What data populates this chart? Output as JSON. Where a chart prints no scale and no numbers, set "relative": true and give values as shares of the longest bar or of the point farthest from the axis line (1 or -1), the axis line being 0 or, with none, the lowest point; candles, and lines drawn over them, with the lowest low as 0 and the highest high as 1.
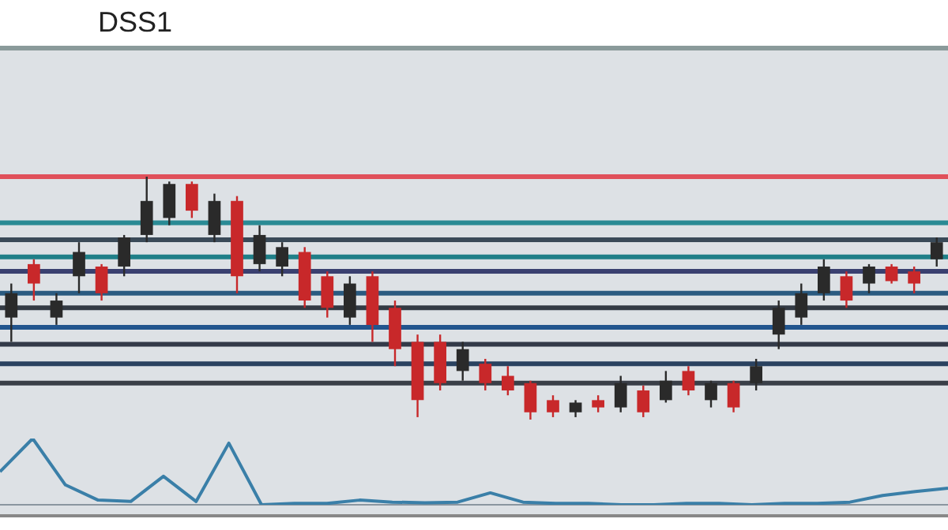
{
  "chart_data": [
    {
      "type": "candlestick",
      "title": "DSS1",
      "relative": true,
      "categories": [
        null,
        null,
        null,
        null,
        null,
        null,
        null,
        null,
        null,
        null,
        null,
        null,
        null,
        null,
        null,
        null,
        null,
        null,
        null,
        null,
        null,
        null,
        null,
        null,
        null,
        null,
        null,
        null,
        null,
        null,
        null,
        null,
        null,
        null,
        null,
        null,
        null,
        null,
        null,
        null,
        null,
        null
      ],
      "ohlc": [
        [
          0.42,
          0.56,
          0.32,
          0.52
        ],
        [
          0.64,
          0.66,
          0.49,
          0.56
        ],
        [
          0.42,
          0.52,
          0.39,
          0.49
        ],
        [
          0.59,
          0.73,
          0.52,
          0.69
        ],
        [
          0.63,
          0.64,
          0.49,
          0.52
        ],
        [
          0.63,
          0.76,
          0.59,
          0.75
        ],
        [
          0.76,
          1.0,
          0.73,
          0.9
        ],
        [
          0.83,
          0.98,
          0.8,
          0.97
        ],
        [
          0.97,
          0.98,
          0.83,
          0.86
        ],
        [
          0.76,
          0.93,
          0.73,
          0.9
        ],
        [
          0.9,
          0.92,
          0.52,
          0.59
        ],
        [
          0.64,
          0.8,
          0.61,
          0.76
        ],
        [
          0.63,
          0.73,
          0.59,
          0.71
        ],
        [
          0.69,
          0.71,
          0.46,
          0.49
        ],
        [
          0.59,
          0.61,
          0.42,
          0.46
        ],
        [
          0.42,
          0.59,
          0.39,
          0.56
        ],
        [
          0.59,
          0.61,
          0.32,
          0.39
        ],
        [
          0.46,
          0.49,
          0.22,
          0.29
        ],
        [
          0.32,
          0.35,
          0.01,
          0.08
        ],
        [
          0.32,
          0.35,
          0.12,
          0.15
        ],
        [
          0.2,
          0.32,
          0.16,
          0.29
        ],
        [
          0.23,
          0.25,
          0.12,
          0.15
        ],
        [
          0.18,
          0.22,
          0.1,
          0.12
        ],
        [
          0.15,
          0.16,
          0.0,
          0.03
        ],
        [
          0.08,
          0.1,
          0.01,
          0.03
        ],
        [
          0.03,
          0.08,
          0.01,
          0.07
        ],
        [
          0.08,
          0.1,
          0.03,
          0.05
        ],
        [
          0.05,
          0.18,
          0.03,
          0.15
        ],
        [
          0.12,
          0.14,
          0.01,
          0.03
        ],
        [
          0.08,
          0.2,
          0.07,
          0.16
        ],
        [
          0.2,
          0.22,
          0.1,
          0.12
        ],
        [
          0.08,
          0.16,
          0.05,
          0.15
        ],
        [
          0.15,
          0.16,
          0.03,
          0.05
        ],
        [
          0.15,
          0.25,
          0.12,
          0.22
        ],
        [
          0.35,
          0.49,
          0.29,
          0.46
        ],
        [
          0.42,
          0.56,
          0.39,
          0.52
        ],
        [
          0.52,
          0.66,
          0.49,
          0.63
        ],
        [
          0.59,
          0.61,
          0.46,
          0.49
        ],
        [
          0.56,
          0.64,
          0.52,
          0.63
        ],
        [
          0.63,
          0.64,
          0.56,
          0.57
        ],
        [
          0.61,
          0.63,
          0.52,
          0.56
        ],
        [
          0.66,
          0.75,
          0.63,
          0.73
        ]
      ],
      "colors": [
        "#2a2a2a",
        "#c8282a",
        "#2a2a2a",
        "#2a2a2a",
        "#c8282a",
        "#2a2a2a",
        "#2a2a2a",
        "#2a2a2a",
        "#c8282a",
        "#2a2a2a",
        "#c8282a",
        "#2a2a2a",
        "#2a2a2a",
        "#c8282a",
        "#c8282a",
        "#2a2a2a",
        "#c8282a",
        "#c8282a",
        "#c8282a",
        "#c8282a",
        "#2a2a2a",
        "#c8282a",
        "#c8282a",
        "#c8282a",
        "#c8282a",
        "#2a2a2a",
        "#c8282a",
        "#2a2a2a",
        "#c8282a",
        "#2a2a2a",
        "#c8282a",
        "#2a2a2a",
        "#c8282a",
        "#2a2a2a",
        "#2a2a2a",
        "#2a2a2a",
        "#2a2a2a",
        "#c8282a",
        "#2a2a2a",
        "#c8282a",
        "#c8282a",
        "#2a2a2a"
      ],
      "ref_lines": [
        {
          "axis": "y",
          "value": 1.0,
          "color": "#e0505a"
        },
        {
          "axis": "y",
          "value": 0.81,
          "color": "#2a8a94"
        },
        {
          "axis": "y",
          "value": 0.74,
          "color": "#3a4a58"
        },
        {
          "axis": "y",
          "value": 0.67,
          "color": "#1f7f88"
        },
        {
          "axis": "y",
          "value": 0.61,
          "color": "#3a4070"
        },
        {
          "axis": "y",
          "value": 0.52,
          "color": "#2a5a80"
        },
        {
          "axis": "y",
          "value": 0.46,
          "color": "#333a44"
        },
        {
          "axis": "y",
          "value": 0.38,
          "color": "#22558e"
        },
        {
          "axis": "y",
          "value": 0.31,
          "color": "#333a48"
        },
        {
          "axis": "y",
          "value": 0.23,
          "color": "#2a4260"
        },
        {
          "axis": "y",
          "value": 0.15,
          "color": "#3a3f48"
        }
      ]
    },
    {
      "type": "line",
      "relative": true,
      "categories": [
        null,
        null,
        null,
        null,
        null,
        null,
        null,
        null,
        null,
        null,
        null,
        null,
        null,
        null,
        null,
        null,
        null,
        null,
        null,
        null,
        null,
        null,
        null,
        null,
        null,
        null,
        null,
        null,
        null,
        null
      ],
      "series": [
        {
          "color": "#3a7fa8",
          "values": [
            0.5,
            1.0,
            0.3,
            0.07,
            0.05,
            0.43,
            0.05,
            0.93,
            0,
            0.02,
            0.02,
            0.07,
            0.04,
            0.03,
            0.04,
            0.18,
            0.04,
            0.02,
            0.02,
            0,
            0,
            0.02,
            0.02,
            0,
            0.02,
            0.02,
            0.04,
            0.14,
            0.2,
            0.25
          ]
        }
      ]
    }
  ]
}
